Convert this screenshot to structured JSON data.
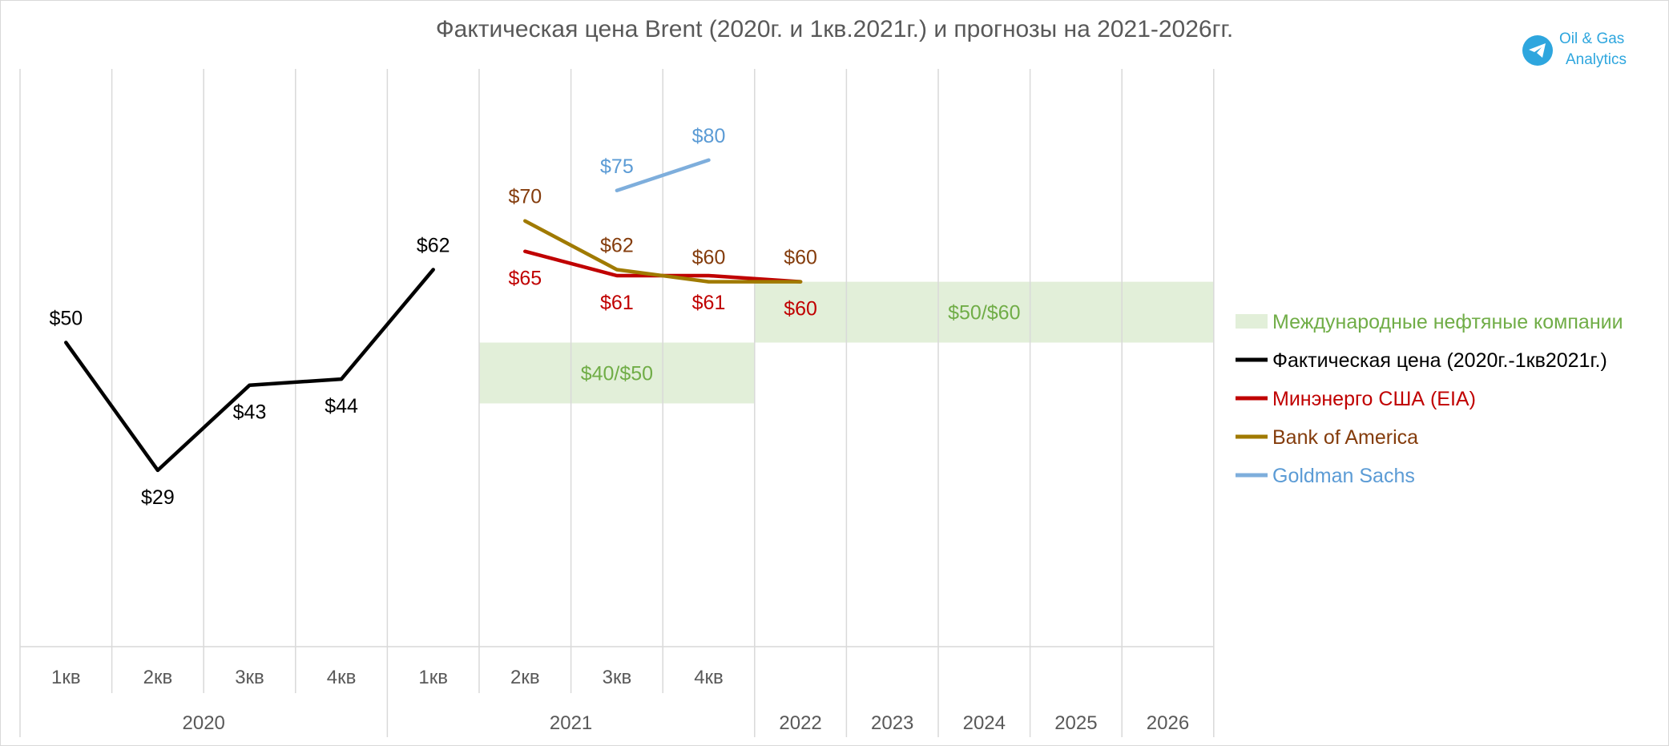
{
  "title": "Фактическая цена Brent (2020г. и 1кв.2021г.) и прогнозы на 2021-2026гг.",
  "brand": {
    "line1": "Oil & Gas",
    "line2": "Analytics",
    "icon": "telegram-icon",
    "color": "#2ea6de"
  },
  "chart_data": {
    "type": "line",
    "title": "Фактическая цена Brent (2020г. и 1кв.2021г.) и прогнозы на 2021-2026гг.",
    "categories": [
      {
        "period": "1кв",
        "year": "2020"
      },
      {
        "period": "2кв",
        "year": "2020"
      },
      {
        "period": "3кв",
        "year": "2020"
      },
      {
        "period": "4кв",
        "year": "2020"
      },
      {
        "period": "1кв",
        "year": "2021"
      },
      {
        "period": "2кв",
        "year": "2021"
      },
      {
        "period": "3кв",
        "year": "2021"
      },
      {
        "period": "4кв",
        "year": "2021"
      },
      {
        "period": "",
        "year": "2022"
      },
      {
        "period": "",
        "year": "2023"
      },
      {
        "period": "",
        "year": "2024"
      },
      {
        "period": "",
        "year": "2025"
      },
      {
        "period": "",
        "year": "2026"
      }
    ],
    "year_groups": [
      {
        "label": "2020",
        "start": 0,
        "end": 3
      },
      {
        "label": "2021",
        "start": 4,
        "end": 7
      },
      {
        "label": "2022",
        "start": 8,
        "end": 8
      },
      {
        "label": "2023",
        "start": 9,
        "end": 9
      },
      {
        "label": "2024",
        "start": 10,
        "end": 10
      },
      {
        "label": "2025",
        "start": 11,
        "end": 11
      },
      {
        "label": "2026",
        "start": 12,
        "end": 12
      }
    ],
    "ylim": [
      0,
      95
    ],
    "grid": "vertical",
    "legend_position": "right",
    "series": [
      {
        "name": "Фактическая цена (2020г.-1кв2021г.)",
        "color": "#000000",
        "label_color": "#000000",
        "values": [
          50,
          29,
          43,
          44,
          62,
          null,
          null,
          null,
          null,
          null,
          null,
          null,
          null
        ],
        "labels": [
          "$50",
          "$29",
          "$43",
          "$44",
          "$62"
        ],
        "label_pos": [
          "above",
          "below",
          "below",
          "below",
          "above"
        ]
      },
      {
        "name": "Минэнерго США (EIA)",
        "color": "#c00000",
        "label_color": "#c00000",
        "values": [
          null,
          null,
          null,
          null,
          null,
          65,
          61,
          61,
          60,
          null,
          null,
          null,
          null
        ],
        "labels": [
          "$65",
          "$61",
          "$61",
          "$60"
        ],
        "label_pos": [
          "below",
          "below",
          "below",
          "below"
        ]
      },
      {
        "name": "Bank of America",
        "color": "#a07a00",
        "label_color": "#843c0c",
        "values": [
          null,
          null,
          null,
          null,
          null,
          70,
          62,
          60,
          60,
          null,
          null,
          null,
          null
        ],
        "labels": [
          "$70",
          "$62",
          "$60",
          "$60"
        ],
        "label_pos": [
          "above",
          "above",
          "above",
          "above"
        ]
      },
      {
        "name": "Goldman Sachs",
        "color": "#7eaedc",
        "label_color": "#5b9bd5",
        "values": [
          null,
          null,
          null,
          null,
          null,
          null,
          75,
          80,
          null,
          null,
          null,
          null,
          null
        ],
        "labels": [
          "$75",
          "$80"
        ],
        "label_pos": [
          "above",
          "above"
        ]
      }
    ],
    "bands": [
      {
        "name": "Международные нефтяные компании",
        "color": "#e2efd9",
        "label_color": "#70ad47",
        "ranges": [
          {
            "label": "$40/$50",
            "from_category": 5,
            "to_category": 7,
            "low": 40,
            "high": 50
          },
          {
            "label": "$50/$60",
            "from_category": 8,
            "to_category": 12,
            "low": 50,
            "high": 60
          }
        ]
      }
    ]
  }
}
